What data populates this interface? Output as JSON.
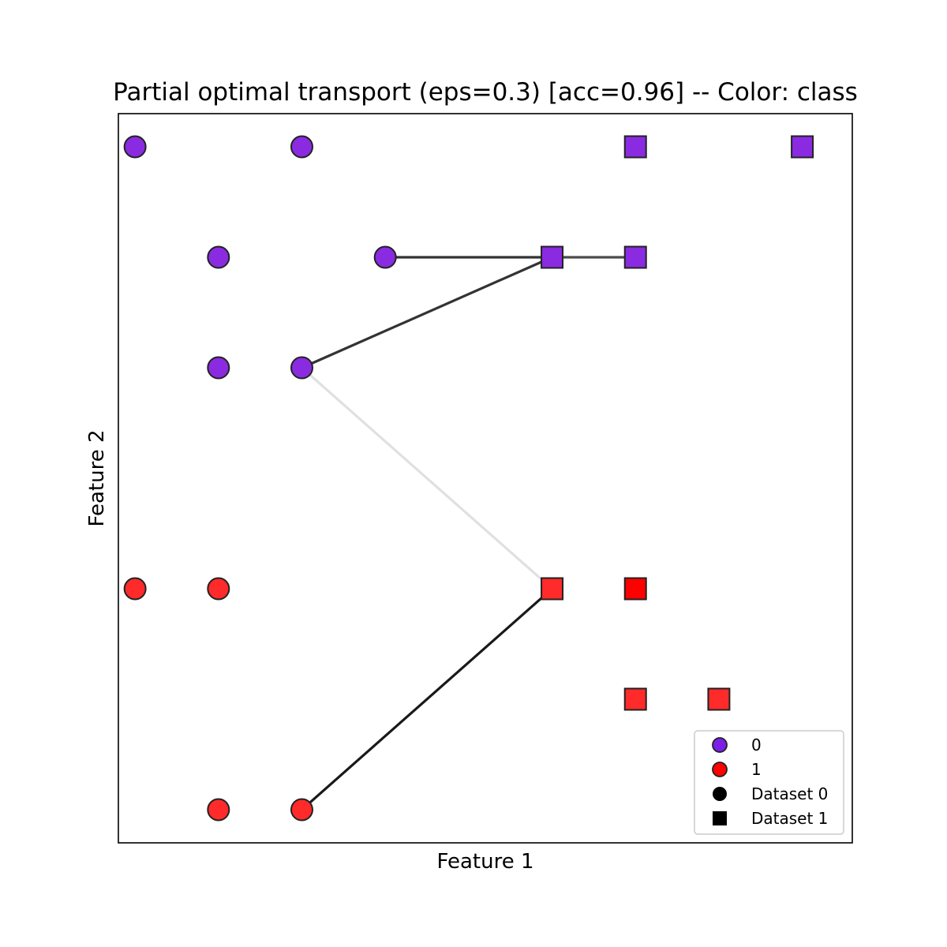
{
  "chart_data": {
    "type": "scatter",
    "title": "Partial optimal transport (eps=0.3) [acc=0.96] -- Color: class",
    "xlabel": "Feature 1",
    "ylabel": "Feature 2",
    "xlim": [
      -0.2,
      8.6
    ],
    "ylim": [
      -0.3,
      6.3
    ],
    "grid": false,
    "ticks_visible": false,
    "legend_position": "lower-right",
    "colors": {
      "class_0": "#8a2be2",
      "class_1": "#ff2a2a",
      "edge": "#222222",
      "legend_marker": "#000000"
    },
    "legend": [
      {
        "label": "0",
        "marker": "circle",
        "color": "#7b1fe8"
      },
      {
        "label": "1",
        "marker": "circle",
        "color": "#ff0000"
      },
      {
        "label": "Dataset 0",
        "marker": "circle",
        "color": "#000000"
      },
      {
        "label": "Dataset 1",
        "marker": "square",
        "color": "#000000"
      }
    ],
    "series": [
      {
        "name": "Dataset 0",
        "marker": "circle",
        "points": [
          {
            "x": 0,
            "y": 6,
            "class": 0
          },
          {
            "x": 2,
            "y": 6,
            "class": 0
          },
          {
            "x": 1,
            "y": 5,
            "class": 0
          },
          {
            "x": 3,
            "y": 5,
            "class": 0
          },
          {
            "x": 1,
            "y": 4,
            "class": 0
          },
          {
            "x": 2,
            "y": 4,
            "class": 0
          },
          {
            "x": 0,
            "y": 2,
            "class": 1
          },
          {
            "x": 1,
            "y": 2,
            "class": 1
          },
          {
            "x": 1,
            "y": 0,
            "class": 1
          },
          {
            "x": 2,
            "y": 0,
            "class": 1
          }
        ]
      },
      {
        "name": "Dataset 1",
        "marker": "square",
        "points": [
          {
            "x": 6,
            "y": 6,
            "class": 0
          },
          {
            "x": 8,
            "y": 6,
            "class": 0
          },
          {
            "x": 5,
            "y": 5,
            "class": 0
          },
          {
            "x": 6,
            "y": 5,
            "class": 0
          },
          {
            "x": 5,
            "y": 2,
            "class": 1
          },
          {
            "x": 6,
            "y": 2,
            "class": 1,
            "color": "#ff0000"
          },
          {
            "x": 6,
            "y": 1,
            "class": 1
          },
          {
            "x": 7,
            "y": 1,
            "class": 1
          }
        ]
      }
    ],
    "transport_lines": [
      {
        "from": [
          3,
          5
        ],
        "to": [
          5,
          5
        ],
        "alpha": 0.8
      },
      {
        "from": [
          5,
          5
        ],
        "to": [
          6,
          5
        ],
        "alpha": 0.7
      },
      {
        "from": [
          2,
          4
        ],
        "to": [
          5,
          5
        ],
        "alpha": 0.8
      },
      {
        "from": [
          2,
          4
        ],
        "to": [
          5,
          2
        ],
        "alpha": 0.12
      },
      {
        "from": [
          2,
          0
        ],
        "to": [
          5,
          2
        ],
        "alpha": 0.9
      }
    ]
  }
}
